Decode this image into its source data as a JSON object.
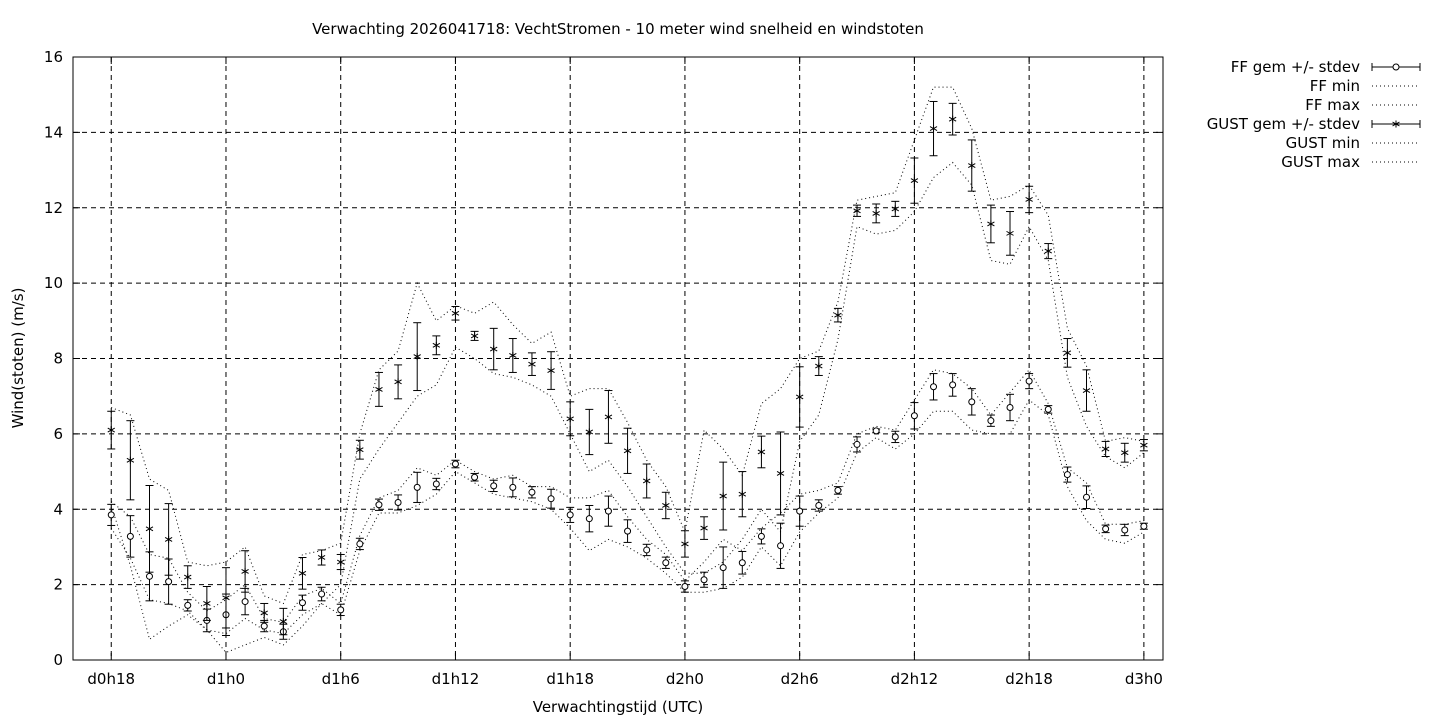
{
  "chart_data": {
    "type": "line",
    "title": "Verwachting 2026041718: VechtStromen - 10 meter wind snelheid en windstoten",
    "xlabel": "Verwachtingstijd (UTC)",
    "ylabel": "Wind(stoten) (m/s)",
    "xlim": [
      -2,
      55
    ],
    "ylim": [
      0,
      16
    ],
    "xticks": [
      {
        "x": 0,
        "label": "d0h18"
      },
      {
        "x": 6,
        "label": "d1h0"
      },
      {
        "x": 12,
        "label": "d1h6"
      },
      {
        "x": 18,
        "label": "d1h12"
      },
      {
        "x": 24,
        "label": "d1h18"
      },
      {
        "x": 30,
        "label": "d2h0"
      },
      {
        "x": 36,
        "label": "d2h6"
      },
      {
        "x": 42,
        "label": "d2h12"
      },
      {
        "x": 48,
        "label": "d2h18"
      },
      {
        "x": 54,
        "label": "d3h0"
      }
    ],
    "yticks": [
      0,
      2,
      4,
      6,
      8,
      10,
      12,
      14,
      16
    ],
    "grid": true,
    "legend_position": "top-right outside",
    "x": [
      0,
      1,
      2,
      3,
      4,
      5,
      6,
      7,
      8,
      9,
      10,
      11,
      12,
      13,
      14,
      15,
      16,
      17,
      18,
      19,
      20,
      21,
      22,
      23,
      24,
      25,
      26,
      27,
      28,
      29,
      30,
      31,
      32,
      33,
      34,
      35,
      36,
      37,
      38,
      39,
      40,
      41,
      42,
      43,
      44,
      45,
      46,
      47,
      48,
      49,
      50,
      51,
      52,
      53,
      54
    ],
    "series": [
      {
        "name": "FF gem +/- stdev",
        "style": "errorbars-circle",
        "values": [
          3.85,
          3.28,
          2.22,
          2.08,
          1.45,
          1.05,
          1.2,
          1.55,
          0.9,
          0.75,
          1.52,
          1.75,
          1.33,
          3.08,
          4.12,
          4.18,
          4.58,
          4.67,
          5.2,
          4.85,
          4.62,
          4.58,
          4.45,
          4.28,
          3.85,
          3.75,
          3.95,
          3.42,
          2.92,
          2.58,
          1.95,
          2.13,
          2.45,
          2.58,
          3.28,
          3.03,
          3.95,
          4.1,
          4.5,
          5.72,
          6.08,
          5.92,
          6.48,
          7.25,
          7.3,
          6.85,
          6.35,
          6.7,
          7.4,
          6.65,
          4.92,
          4.32,
          3.48,
          3.45,
          3.55
        ],
        "stdev": [
          0.28,
          0.55,
          0.65,
          0.6,
          0.15,
          0.3,
          0.55,
          0.35,
          0.15,
          0.2,
          0.2,
          0.18,
          0.15,
          0.15,
          0.15,
          0.2,
          0.4,
          0.15,
          0.1,
          0.1,
          0.15,
          0.25,
          0.15,
          0.25,
          0.2,
          0.35,
          0.4,
          0.3,
          0.15,
          0.15,
          0.15,
          0.2,
          0.55,
          0.3,
          0.2,
          0.6,
          0.4,
          0.15,
          0.1,
          0.2,
          0.05,
          0.15,
          0.35,
          0.35,
          0.3,
          0.35,
          0.15,
          0.35,
          0.2,
          0.1,
          0.2,
          0.3,
          0.1,
          0.15,
          0.08
        ]
      },
      {
        "name": "FF min",
        "style": "dotted",
        "values": [
          3.5,
          2.7,
          1.6,
          1.5,
          1.3,
          0.8,
          0.7,
          1.1,
          0.8,
          0.7,
          1.2,
          1.5,
          1.2,
          2.9,
          3.9,
          3.9,
          4.1,
          4.4,
          5.0,
          4.7,
          4.4,
          4.3,
          4.2,
          4.0,
          3.5,
          2.9,
          3.2,
          3.0,
          2.7,
          2.3,
          1.8,
          1.8,
          1.9,
          2.2,
          3.0,
          2.5,
          3.4,
          3.9,
          4.3,
          5.5,
          5.9,
          5.6,
          6.0,
          6.6,
          6.6,
          6.1,
          6.0,
          6.0,
          6.9,
          6.5,
          4.6,
          3.7,
          3.2,
          3.1,
          3.4
        ]
      },
      {
        "name": "FF max",
        "style": "dotted",
        "values": [
          4.2,
          3.8,
          2.8,
          2.7,
          1.8,
          1.3,
          1.6,
          2.0,
          1.1,
          1.0,
          1.7,
          1.9,
          1.5,
          3.3,
          4.3,
          4.5,
          5.1,
          4.9,
          5.3,
          5.0,
          4.8,
          4.9,
          4.6,
          4.6,
          4.3,
          4.3,
          4.5,
          3.8,
          3.2,
          2.8,
          2.1,
          2.6,
          3.2,
          2.9,
          3.5,
          3.9,
          4.4,
          4.5,
          4.7,
          6.0,
          6.2,
          6.1,
          6.9,
          7.7,
          7.6,
          7.2,
          6.5,
          7.1,
          7.7,
          6.8,
          5.1,
          4.7,
          3.6,
          3.6,
          3.7
        ]
      },
      {
        "name": "GUST gem +/- stdev",
        "style": "errorbars-star",
        "values": [
          6.1,
          5.3,
          3.48,
          3.2,
          2.2,
          1.5,
          1.65,
          2.35,
          1.25,
          1.02,
          2.3,
          2.72,
          2.6,
          5.58,
          7.18,
          7.38,
          8.05,
          8.35,
          9.2,
          8.6,
          8.25,
          8.08,
          7.85,
          7.68,
          6.4,
          6.05,
          6.45,
          5.55,
          4.75,
          4.1,
          3.08,
          3.5,
          4.35,
          4.4,
          5.52,
          4.95,
          6.98,
          7.8,
          9.15,
          11.92,
          11.85,
          11.97,
          12.72,
          14.1,
          14.35,
          13.12,
          11.57,
          11.32,
          12.22,
          10.85,
          8.15,
          7.15,
          5.6,
          5.5,
          5.7
        ]
      },
      {
        "name": "GUST min",
        "style": "dotted",
        "values": [
          4.1,
          2.5,
          0.55,
          0.9,
          1.2,
          0.8,
          0.2,
          0.4,
          0.6,
          0.4,
          0.9,
          1.5,
          2.0,
          4.8,
          5.6,
          6.3,
          7.0,
          7.3,
          8.3,
          8.0,
          7.6,
          7.5,
          7.3,
          7.0,
          6.0,
          5.0,
          5.3,
          4.6,
          3.8,
          3.0,
          2.3,
          2.3,
          2.6,
          3.2,
          4.0,
          3.4,
          5.8,
          6.5,
          8.5,
          11.5,
          11.3,
          11.4,
          11.9,
          12.8,
          13.2,
          12.6,
          10.6,
          10.5,
          11.5,
          10.6,
          7.5,
          6.2,
          5.4,
          5.1,
          5.5
        ]
      },
      {
        "name": "GUST max",
        "style": "dotted",
        "values": [
          6.7,
          6.5,
          4.8,
          4.5,
          2.6,
          2.5,
          2.6,
          3.0,
          1.7,
          1.5,
          2.8,
          2.9,
          3.1,
          6.0,
          7.7,
          8.2,
          10.0,
          9.0,
          9.4,
          9.2,
          9.5,
          8.9,
          8.4,
          8.7,
          7.0,
          7.2,
          7.2,
          6.3,
          5.3,
          4.6,
          3.4,
          6.1,
          5.6,
          4.9,
          6.8,
          7.2,
          8.0,
          8.2,
          9.5,
          12.2,
          12.3,
          12.4,
          13.8,
          15.2,
          15.2,
          14.1,
          12.2,
          12.3,
          12.6,
          11.8,
          8.8,
          7.8,
          5.8,
          5.9,
          5.8
        ]
      }
    ]
  }
}
